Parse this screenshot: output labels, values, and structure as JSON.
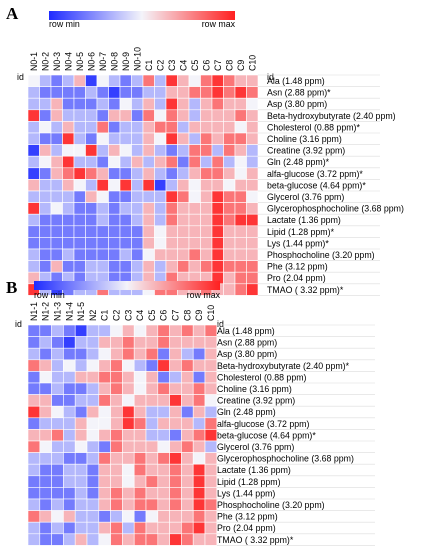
{
  "palette": {
    "min": "#1f2bff",
    "mid": "#f4f4fa",
    "max": "#ff2020"
  },
  "chart_data": [
    {
      "type": "heatmap",
      "panel_label": "A",
      "scale": {
        "min_label": "row min",
        "max_label": "row max",
        "range": [
          -1,
          1
        ]
      },
      "id_label": "id",
      "columns": [
        "N0-1",
        "N0-2",
        "N0-3",
        "N0-4",
        "N0-5",
        "N0-6",
        "N0-7",
        "N0-8",
        "N0-9",
        "N0-10",
        "C1",
        "C2",
        "C3",
        "C4",
        "C5",
        "C6",
        "C7",
        "C8",
        "C9",
        "C10"
      ],
      "rows": [
        "Ala (1.48 ppm)",
        "Asn (2.88 ppm)*",
        "Asp (3.80 ppm)",
        "Beta-hydroxybutyrate (2.40 ppm)",
        "Cholesterol (0.88 ppm)*",
        "Choline (3.16 ppm)",
        "Creatine (3.92 ppm)",
        "Gln  (2.48 ppm)*",
        "alfa-glucose (3.72 ppm)*",
        "beta-glucose (4.64 ppm)*",
        "Glycerol (3.76 ppm)",
        "Glycerophosphocholine (3.68 ppm)",
        "Lactate  (1.36 ppm)",
        "Lipid  (1.28 ppm)*",
        "Lys  (1.44 ppm)*",
        "Phosphocholine (3.20 ppm)",
        "Phe (3.12 ppm)",
        "Pro (2.04 ppm)",
        "TMAO ( 3.32 ppm)*"
      ],
      "values": [
        [
          0.0,
          -0.3,
          -0.6,
          -0.3,
          0.3,
          -0.9,
          0.0,
          -0.3,
          -0.6,
          -0.3,
          0.6,
          -0.3,
          0.9,
          0.3,
          0.0,
          0.6,
          0.9,
          0.6,
          0.3,
          0.3
        ],
        [
          -0.3,
          -0.6,
          -0.6,
          -0.6,
          -0.6,
          -0.3,
          -0.6,
          -0.9,
          -0.6,
          -0.6,
          -0.3,
          -0.3,
          0.3,
          0.3,
          0.6,
          0.6,
          0.9,
          0.6,
          0.9,
          0.6
        ],
        [
          -0.3,
          -0.3,
          0.3,
          -0.6,
          -0.6,
          -0.6,
          -0.3,
          -0.6,
          0.0,
          -0.3,
          0.3,
          -0.3,
          0.9,
          0.3,
          -0.3,
          0.3,
          0.6,
          0.3,
          0.3,
          0.0
        ],
        [
          0.9,
          -0.6,
          0.3,
          -0.3,
          -0.3,
          -0.3,
          -0.6,
          0.3,
          0.3,
          -0.6,
          0.6,
          0.0,
          0.6,
          0.3,
          -0.3,
          0.3,
          0.3,
          0.3,
          0.6,
          0.3
        ],
        [
          -0.3,
          0.0,
          -0.3,
          0.3,
          -0.3,
          -0.3,
          0.6,
          -0.6,
          -0.3,
          -0.3,
          0.3,
          0.6,
          0.6,
          -0.3,
          0.3,
          0.3,
          0.3,
          0.3,
          0.0,
          0.3
        ],
        [
          -0.3,
          -0.6,
          -0.6,
          0.9,
          -0.3,
          -0.6,
          0.0,
          -0.3,
          -0.3,
          -0.3,
          0.3,
          0.0,
          0.9,
          0.3,
          -0.3,
          0.6,
          0.3,
          0.6,
          0.6,
          0.3
        ],
        [
          -0.9,
          0.3,
          -0.3,
          0.0,
          0.0,
          0.9,
          -0.3,
          0.3,
          0.0,
          -0.3,
          0.3,
          -0.3,
          -0.6,
          -0.3,
          0.6,
          0.6,
          -0.3,
          0.6,
          0.3,
          -0.3
        ],
        [
          -0.3,
          0.0,
          0.3,
          0.9,
          -0.3,
          -0.3,
          -0.6,
          0.0,
          -0.3,
          0.3,
          -0.3,
          0.3,
          0.6,
          -0.6,
          0.6,
          -0.3,
          0.6,
          -0.3,
          0.0,
          -0.3
        ],
        [
          -0.9,
          -0.6,
          0.3,
          0.6,
          0.9,
          0.6,
          0.3,
          -0.6,
          -0.6,
          -0.3,
          0.3,
          -0.3,
          -0.6,
          -0.3,
          0.3,
          0.6,
          0.6,
          0.3,
          0.0,
          0.3
        ],
        [
          0.3,
          -0.3,
          -0.3,
          0.3,
          0.0,
          -0.3,
          0.9,
          0.0,
          0.9,
          -0.3,
          0.9,
          -0.9,
          -0.3,
          0.3,
          0.0,
          0.3,
          0.3,
          0.0,
          0.3,
          0.3
        ],
        [
          -0.3,
          -0.3,
          -0.3,
          -0.3,
          -0.6,
          0.3,
          0.0,
          -0.6,
          -0.6,
          -0.3,
          -0.3,
          -0.3,
          0.9,
          0.6,
          0.0,
          0.3,
          0.9,
          0.6,
          0.6,
          0.0
        ],
        [
          0.9,
          -0.3,
          0.0,
          -0.3,
          -0.6,
          -0.6,
          -0.3,
          -0.6,
          -0.3,
          -0.3,
          0.3,
          -0.3,
          0.6,
          0.3,
          0.3,
          0.3,
          0.9,
          0.6,
          0.6,
          0.3
        ],
        [
          -0.3,
          -0.6,
          -0.6,
          -0.6,
          -0.6,
          -0.6,
          -0.3,
          -0.6,
          -0.6,
          -0.3,
          0.3,
          -0.3,
          0.6,
          0.3,
          0.3,
          0.3,
          0.9,
          0.6,
          0.9,
          0.9
        ],
        [
          -0.6,
          -0.6,
          -0.6,
          -0.6,
          -0.6,
          -0.6,
          -0.6,
          -0.6,
          -0.6,
          -0.6,
          0.3,
          0.0,
          0.3,
          0.3,
          0.3,
          0.3,
          0.9,
          0.3,
          0.3,
          0.3
        ],
        [
          -0.6,
          -0.6,
          -0.6,
          -0.6,
          -0.6,
          -0.6,
          -0.6,
          -0.6,
          -0.6,
          -0.6,
          0.3,
          0.0,
          0.3,
          0.3,
          0.3,
          0.3,
          0.9,
          0.3,
          0.3,
          0.3
        ],
        [
          -0.3,
          -0.6,
          -0.6,
          -0.3,
          -0.6,
          -0.6,
          -0.6,
          -0.6,
          -0.3,
          -0.6,
          0.0,
          0.3,
          0.3,
          0.3,
          0.6,
          0.3,
          0.9,
          0.3,
          0.3,
          0.3
        ],
        [
          -0.3,
          -0.6,
          0.3,
          -0.6,
          -0.6,
          -0.3,
          -0.3,
          -0.6,
          -0.6,
          -0.3,
          0.3,
          -0.3,
          0.3,
          0.6,
          0.3,
          0.6,
          0.9,
          0.6,
          0.6,
          0.6
        ],
        [
          0.3,
          -0.3,
          -0.6,
          -0.3,
          -0.6,
          -0.3,
          -0.3,
          -0.6,
          -0.6,
          -0.3,
          0.3,
          -0.3,
          0.6,
          0.3,
          0.3,
          0.3,
          0.9,
          0.3,
          0.6,
          0.6
        ],
        [
          0.9,
          -0.3,
          -0.9,
          -0.6,
          -0.3,
          -0.3,
          0.6,
          -0.3,
          -0.3,
          -0.3,
          0.0,
          0.6,
          0.6,
          0.3,
          0.3,
          0.6,
          0.3,
          0.3,
          0.6,
          0.9
        ]
      ]
    },
    {
      "type": "heatmap",
      "panel_label": "B",
      "scale": {
        "min_label": "row min",
        "max_label": "row max",
        "range": [
          -1,
          1
        ]
      },
      "id_label": "id",
      "columns": [
        "N1-1",
        "N1-2",
        "N1-3",
        "N1-4",
        "N1-5",
        "N2",
        "C1",
        "C2",
        "C3",
        "C4",
        "C5",
        "C6",
        "C7",
        "C8",
        "C9",
        "C10"
      ],
      "rows": [
        "Ala (1.48 ppm)",
        "Asn (2.88 ppm)",
        "Asp (3.80 ppm)",
        "Beta-hydroxybutyrate (2.40 ppm)*",
        "Cholesterol (0.88 ppm)",
        "Choline (3.16 ppm)",
        "Creatine (3.92 ppm)",
        "Gln  (2.48 ppm)",
        "alfa-glucose (3.72 ppm)",
        "beta-glucose (4.64 ppm)*",
        "Glycerol (3.76 ppm)",
        "Glycerophosphocholine (3.68 ppm)",
        "Lactate  (1.36 ppm)",
        "Lipid  (1.28 ppm)",
        "Lys (1.44 ppm)",
        "Phosphocholine (3.20 ppm)",
        "Phe (3.12 ppm)",
        "Pro (2.04 ppm)",
        "TMAO ( 3.32 ppm)*"
      ],
      "values": [
        [
          -0.6,
          -0.6,
          -0.3,
          -0.6,
          -0.9,
          -0.3,
          -0.3,
          0.0,
          0.3,
          0.0,
          0.3,
          0.6,
          0.3,
          0.6,
          0.3,
          0.6
        ],
        [
          -0.6,
          -0.3,
          -0.6,
          -0.9,
          -0.3,
          -0.3,
          0.3,
          0.3,
          0.6,
          0.3,
          0.3,
          0.6,
          0.3,
          0.3,
          0.3,
          0.3
        ],
        [
          -0.3,
          -0.6,
          -0.3,
          -0.6,
          -0.6,
          -0.3,
          0.0,
          0.3,
          0.6,
          0.3,
          0.6,
          -0.6,
          0.3,
          -0.3,
          -0.6,
          0.3
        ],
        [
          0.6,
          0.3,
          -0.3,
          0.0,
          -0.3,
          0.0,
          0.3,
          0.6,
          0.0,
          -0.3,
          -0.6,
          0.9,
          0.3,
          0.6,
          0.3,
          0.3
        ],
        [
          -0.6,
          0.0,
          -0.3,
          -0.3,
          0.3,
          0.3,
          0.6,
          0.6,
          0.3,
          0.0,
          0.3,
          -0.6,
          -0.3,
          0.3,
          -0.6,
          0.3
        ],
        [
          -0.6,
          -0.6,
          -0.3,
          -0.6,
          -0.6,
          -0.3,
          0.3,
          0.6,
          0.3,
          0.0,
          0.3,
          0.6,
          0.3,
          0.3,
          0.6,
          0.3
        ],
        [
          0.3,
          0.3,
          -0.6,
          -0.6,
          -0.3,
          -0.3,
          0.6,
          0.3,
          0.0,
          0.3,
          0.3,
          0.3,
          0.9,
          0.3,
          0.6,
          0.0
        ],
        [
          0.9,
          0.3,
          0.0,
          -0.3,
          -0.6,
          0.3,
          0.0,
          0.3,
          0.9,
          0.3,
          -0.3,
          -0.3,
          0.3,
          -0.6,
          0.3,
          -0.3
        ],
        [
          -0.6,
          -0.3,
          -0.3,
          -0.3,
          0.3,
          0.0,
          0.0,
          0.3,
          0.9,
          0.6,
          -0.3,
          0.3,
          0.3,
          0.3,
          -0.3,
          0.6
        ],
        [
          0.3,
          0.3,
          0.6,
          -0.3,
          0.3,
          0.0,
          0.3,
          0.6,
          0.3,
          0.3,
          -0.3,
          -0.3,
          -0.6,
          0.3,
          0.6,
          0.9
        ],
        [
          0.6,
          0.0,
          -0.3,
          -0.3,
          0.0,
          -0.3,
          -0.6,
          0.6,
          0.3,
          0.3,
          0.3,
          0.0,
          0.3,
          0.6,
          0.3,
          -0.3
        ],
        [
          -0.3,
          -0.3,
          -0.3,
          -0.6,
          -0.6,
          -0.3,
          0.6,
          0.3,
          0.3,
          0.6,
          0.3,
          0.6,
          0.9,
          0.3,
          0.0,
          0.3
        ],
        [
          -0.3,
          -0.6,
          -0.6,
          -0.3,
          -0.3,
          -0.6,
          0.3,
          0.3,
          0.0,
          0.6,
          0.3,
          0.3,
          0.6,
          0.3,
          0.9,
          0.3
        ],
        [
          -0.6,
          -0.6,
          -0.6,
          -0.3,
          -0.3,
          -0.6,
          0.3,
          0.3,
          0.0,
          0.3,
          0.6,
          0.3,
          0.6,
          0.3,
          0.9,
          0.3
        ],
        [
          -0.6,
          -0.6,
          -0.6,
          -0.6,
          -0.3,
          -0.6,
          0.3,
          0.6,
          0.3,
          0.6,
          0.3,
          0.3,
          0.6,
          0.3,
          0.9,
          0.3
        ],
        [
          -0.3,
          -0.6,
          -0.3,
          -0.6,
          -0.3,
          -0.3,
          0.3,
          0.6,
          0.3,
          0.6,
          0.6,
          0.3,
          0.6,
          0.3,
          0.9,
          0.6
        ],
        [
          0.6,
          0.3,
          0.0,
          0.3,
          -0.3,
          -0.3,
          -0.6,
          -0.3,
          0.0,
          -0.6,
          0.0,
          0.3,
          0.3,
          0.3,
          0.6,
          0.3
        ],
        [
          -0.3,
          -0.6,
          -0.3,
          -0.6,
          -0.3,
          -0.3,
          0.3,
          0.6,
          -0.3,
          0.6,
          0.3,
          0.3,
          0.3,
          0.6,
          0.9,
          0.3
        ],
        [
          -0.3,
          -0.6,
          -0.6,
          -0.3,
          0.3,
          -0.3,
          0.0,
          0.6,
          0.3,
          0.6,
          0.6,
          0.3,
          0.9,
          0.6,
          0.3,
          0.3
        ]
      ]
    }
  ]
}
